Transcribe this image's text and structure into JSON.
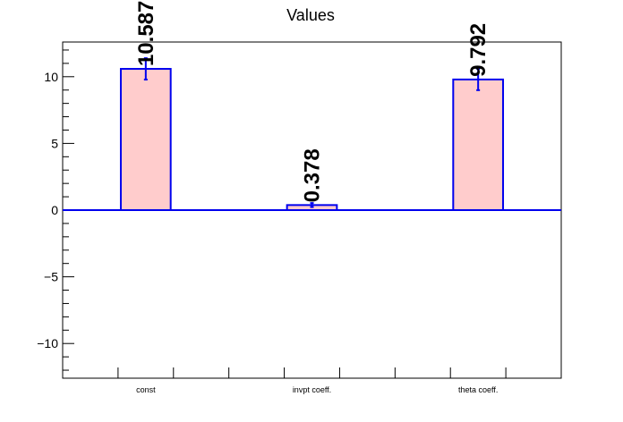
{
  "chart_data": {
    "type": "bar",
    "title": "Values",
    "categories": [
      "const",
      "invpt coeff.",
      "theta coeff."
    ],
    "values": [
      10.587,
      0.378,
      9.792
    ],
    "value_labels": [
      "10.587",
      "0.378",
      "9.792"
    ],
    "errors": [
      0.8,
      0.15,
      0.8
    ],
    "ylim": [
      -12.6,
      12.6
    ],
    "yticks": [
      -10,
      -5,
      0,
      5,
      10
    ],
    "ytick_labels": [
      "−10",
      "−5",
      "0",
      "5",
      "10"
    ],
    "xlabel": "",
    "ylabel": "",
    "grid": false,
    "legend": "none",
    "colors": {
      "bar_fill": "#ffcccc",
      "bar_edge": "#0000ee",
      "zero_line": "#0000ee",
      "error_bar": "#0000ee",
      "axis": "#000000",
      "label_text": "#000000"
    }
  }
}
